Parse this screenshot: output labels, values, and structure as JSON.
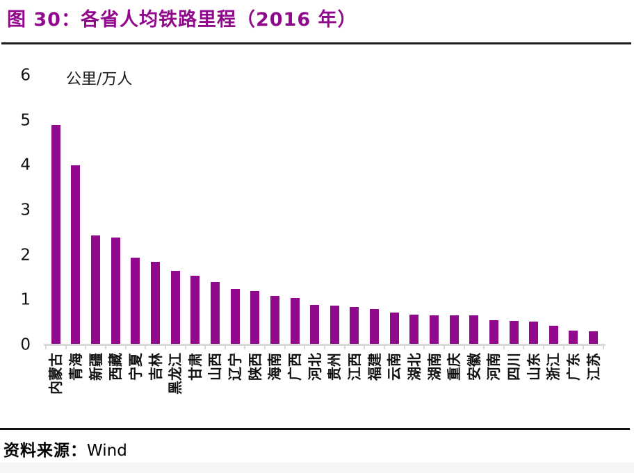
{
  "title": "图 30：各省人均铁路里程（2016 年）",
  "source": {
    "label": "资料来源：",
    "value": "Wind"
  },
  "colors": {
    "bar": "#90098C",
    "title": "#90098C",
    "axis": "#D9D9D9",
    "rule": "#1A1A1A",
    "text": "#000000"
  },
  "chart_data": {
    "type": "bar",
    "title": "各省人均铁路里程（2016 年）",
    "unit_label": "公里/万人",
    "categories": [
      "内蒙古",
      "青海",
      "新疆",
      "西藏",
      "宁夏",
      "吉林",
      "黑龙江",
      "甘肃",
      "山西",
      "辽宁",
      "陕西",
      "海南",
      "广西",
      "河北",
      "贵州",
      "江西",
      "福建",
      "云南",
      "湖北",
      "湖南",
      "重庆",
      "安徽",
      "河南",
      "四川",
      "山东",
      "浙江",
      "广东",
      "江苏"
    ],
    "values": [
      4.9,
      4.0,
      2.45,
      2.4,
      1.95,
      1.85,
      1.65,
      1.55,
      1.4,
      1.25,
      1.2,
      1.1,
      1.05,
      0.9,
      0.88,
      0.85,
      0.8,
      0.72,
      0.68,
      0.67,
      0.67,
      0.66,
      0.55,
      0.54,
      0.52,
      0.43,
      0.33,
      0.31
    ],
    "xlabel": "",
    "ylabel": "公里/万人",
    "ylim": [
      0,
      6
    ],
    "yticks": [
      0,
      1,
      2,
      3,
      4,
      5,
      6
    ],
    "grid": false,
    "legend": false,
    "bar_color": "#90098C"
  }
}
